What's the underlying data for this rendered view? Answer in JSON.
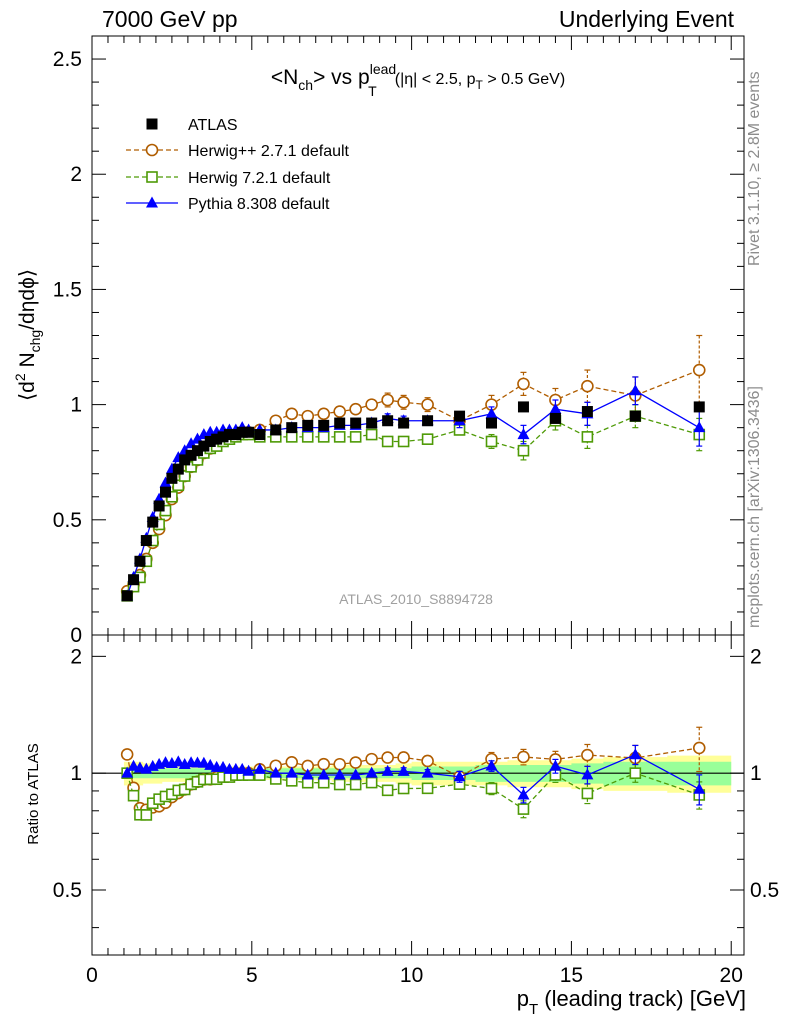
{
  "header": {
    "left": "7000 GeV pp",
    "right": "Underlying Event"
  },
  "side_text": {
    "rivet": "Rivet 3.1.10, ≥ 2.8M events",
    "mcplots": "mcplots.cern.ch [arXiv:1306.3436]"
  },
  "chart_data": {
    "type": "scatter",
    "title_parts": {
      "main": "<N",
      "main_sub": "ch",
      "main_mid": "> vs p",
      "pt_sup": "lead",
      "pt_sub": "T",
      "cuts_a": "(|η| < 2.5, p",
      "cuts_sub": "T",
      "cuts_b": " > 0.5 GeV)"
    },
    "ylabel_parts": {
      "a": "⟨d",
      "sup": "2",
      "b": " N",
      "sub": "chg",
      "c": "/dηdϕ⟩"
    },
    "xlabel_parts": {
      "a": "p",
      "sub": "T",
      "b": " (leading track) [GeV]"
    },
    "ratio_ylabel": "Ratio to ATLAS",
    "analysis_label": "ATLAS_2010_S8894728",
    "xlim": [
      0,
      20.4
    ],
    "ylim": [
      0,
      2.6
    ],
    "ratio_ylim": [
      0.34,
      2.27
    ],
    "x_ticks": [
      "0",
      "5",
      "10",
      "15",
      "20"
    ],
    "y_ticks": [
      "0",
      "0.5",
      "1",
      "1.5",
      "2",
      "2.5"
    ],
    "ratio_y_ticks": [
      "0.5",
      "1",
      "2"
    ],
    "x": [
      1.1,
      1.3,
      1.5,
      1.7,
      1.9,
      2.1,
      2.3,
      2.5,
      2.7,
      2.9,
      3.1,
      3.3,
      3.5,
      3.7,
      3.9,
      4.1,
      4.3,
      4.5,
      4.7,
      4.9,
      5.25,
      5.75,
      6.25,
      6.75,
      7.25,
      7.75,
      8.25,
      8.75,
      9.25,
      9.75,
      10.5,
      11.5,
      12.5,
      13.5,
      14.5,
      15.5,
      17.0,
      19.0
    ],
    "series": [
      {
        "name": "ATLAS",
        "color": "#000000",
        "marker": "square-filled",
        "values": [
          0.17,
          0.24,
          0.32,
          0.41,
          0.49,
          0.56,
          0.62,
          0.68,
          0.72,
          0.76,
          0.78,
          0.8,
          0.82,
          0.84,
          0.85,
          0.86,
          0.87,
          0.87,
          0.88,
          0.88,
          0.87,
          0.89,
          0.9,
          0.91,
          0.91,
          0.92,
          0.92,
          0.92,
          0.93,
          0.92,
          0.93,
          0.95,
          0.92,
          0.99,
          0.94,
          0.97,
          0.95,
          0.99
        ]
      },
      {
        "name": "Herwig++ 2.7.1 default",
        "color": "#b05d00",
        "marker": "circle-open",
        "values": [
          0.19,
          0.22,
          0.26,
          0.33,
          0.4,
          0.46,
          0.52,
          0.59,
          0.64,
          0.69,
          0.73,
          0.76,
          0.79,
          0.81,
          0.83,
          0.85,
          0.86,
          0.87,
          0.88,
          0.88,
          0.89,
          0.93,
          0.96,
          0.95,
          0.96,
          0.97,
          0.98,
          1.0,
          1.02,
          1.01,
          1.0,
          0.93,
          1.0,
          1.09,
          1.02,
          1.08,
          1.04,
          1.15
        ],
        "errors": [
          0,
          0,
          0,
          0,
          0,
          0,
          0,
          0,
          0,
          0,
          0,
          0,
          0,
          0,
          0,
          0,
          0,
          0,
          0,
          0,
          0,
          0,
          0,
          0,
          0,
          0.01,
          0.01,
          0.02,
          0.03,
          0.03,
          0.03,
          0.03,
          0.04,
          0.05,
          0.05,
          0.07,
          0.08,
          0.15
        ]
      },
      {
        "name": "Herwig 7.2.1 default",
        "color": "#4e9a06",
        "marker": "square-open",
        "values": [
          0.17,
          0.21,
          0.25,
          0.32,
          0.41,
          0.48,
          0.54,
          0.6,
          0.65,
          0.69,
          0.73,
          0.76,
          0.79,
          0.81,
          0.82,
          0.84,
          0.85,
          0.86,
          0.87,
          0.87,
          0.86,
          0.86,
          0.86,
          0.86,
          0.86,
          0.86,
          0.86,
          0.87,
          0.84,
          0.84,
          0.85,
          0.89,
          0.84,
          0.8,
          0.93,
          0.86,
          0.95,
          0.87
        ],
        "errors": [
          0,
          0,
          0,
          0,
          0,
          0,
          0,
          0,
          0,
          0,
          0,
          0,
          0,
          0,
          0,
          0,
          0,
          0,
          0,
          0,
          0,
          0,
          0,
          0,
          0,
          0.01,
          0.01,
          0.01,
          0.02,
          0.02,
          0.02,
          0.02,
          0.03,
          0.04,
          0.04,
          0.05,
          0.05,
          0.07
        ]
      },
      {
        "name": "Pythia 8.308 default",
        "color": "#0000ff",
        "marker": "triangle-filled",
        "values": [
          0.17,
          0.25,
          0.33,
          0.42,
          0.51,
          0.59,
          0.66,
          0.72,
          0.77,
          0.8,
          0.83,
          0.85,
          0.87,
          0.88,
          0.88,
          0.89,
          0.89,
          0.89,
          0.9,
          0.89,
          0.89,
          0.89,
          0.9,
          0.9,
          0.9,
          0.91,
          0.91,
          0.92,
          0.94,
          0.93,
          0.93,
          0.93,
          0.96,
          0.87,
          0.98,
          0.96,
          1.06,
          0.9
        ],
        "errors": [
          0,
          0,
          0,
          0,
          0,
          0,
          0,
          0,
          0,
          0,
          0,
          0,
          0,
          0,
          0,
          0,
          0,
          0,
          0,
          0,
          0,
          0,
          0,
          0,
          0,
          0.01,
          0.01,
          0.01,
          0.02,
          0.02,
          0.02,
          0.03,
          0.03,
          0.04,
          0.04,
          0.05,
          0.06,
          0.08
        ]
      }
    ],
    "ratio": {
      "band_x": [
        1.0,
        1.2,
        1.4,
        1.6,
        1.8,
        2.0,
        2.2,
        2.4,
        2.6,
        2.8,
        3.0,
        3.2,
        3.4,
        3.6,
        3.8,
        4.0,
        4.2,
        4.4,
        4.6,
        4.8,
        5.0,
        5.5,
        6.0,
        6.5,
        7.0,
        7.5,
        8.0,
        8.5,
        9.0,
        9.5,
        10.0,
        11.0,
        12.0,
        13.0,
        14.0,
        15.0,
        16.0,
        18.0,
        20.0
      ],
      "band_stat": [
        0.03,
        0.03,
        0.03,
        0.03,
        0.03,
        0.03,
        0.03,
        0.03,
        0.03,
        0.03,
        0.03,
        0.03,
        0.03,
        0.03,
        0.03,
        0.03,
        0.03,
        0.03,
        0.03,
        0.03,
        0.03,
        0.03,
        0.03,
        0.03,
        0.03,
        0.03,
        0.03,
        0.03,
        0.03,
        0.03,
        0.04,
        0.04,
        0.05,
        0.05,
        0.05,
        0.06,
        0.07,
        0.07,
        0.07
      ],
      "band_total": [
        0.07,
        0.07,
        0.07,
        0.06,
        0.06,
        0.06,
        0.05,
        0.05,
        0.05,
        0.05,
        0.04,
        0.04,
        0.04,
        0.04,
        0.04,
        0.04,
        0.04,
        0.04,
        0.04,
        0.04,
        0.04,
        0.04,
        0.04,
        0.04,
        0.04,
        0.05,
        0.05,
        0.05,
        0.05,
        0.06,
        0.07,
        0.07,
        0.07,
        0.08,
        0.08,
        0.09,
        0.1,
        0.11,
        0.11
      ]
    }
  }
}
